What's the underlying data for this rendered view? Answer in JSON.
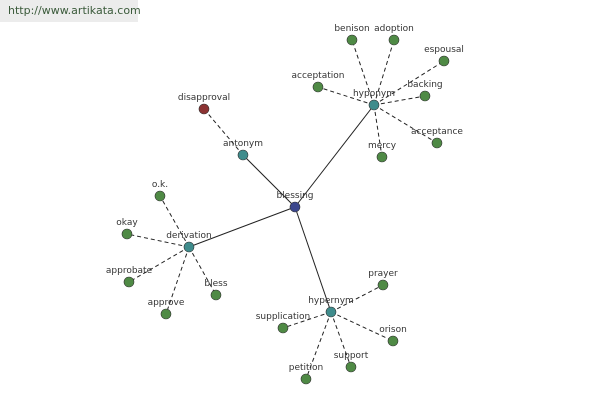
{
  "header": {
    "url": "http://www.artikata.com"
  },
  "graph": {
    "center": "blessing",
    "relations": [
      {
        "label": "antonym",
        "children": [
          "disapproval"
        ]
      },
      {
        "label": "hyponym",
        "children": [
          "benison",
          "adoption",
          "espousal",
          "acceptation",
          "backing",
          "acceptance",
          "mercy"
        ]
      },
      {
        "label": "derivation",
        "children": [
          "o.k.",
          "okay",
          "approbate",
          "approve",
          "bless"
        ]
      },
      {
        "label": "hypernym",
        "children": [
          "prayer",
          "supplication",
          "orison",
          "support",
          "petition"
        ]
      }
    ]
  }
}
